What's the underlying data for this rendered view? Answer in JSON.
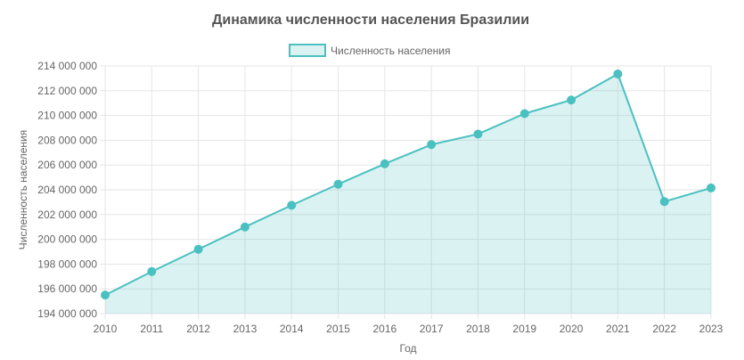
{
  "chart_data": {
    "type": "area",
    "title": "Динамика численности населения Бразилии",
    "xlabel": "Год",
    "ylabel": "Численность населения",
    "legend_position": "top",
    "grid": true,
    "categories": [
      "2010",
      "2011",
      "2012",
      "2013",
      "2014",
      "2015",
      "2016",
      "2017",
      "2018",
      "2019",
      "2020",
      "2021",
      "2022",
      "2023"
    ],
    "series": [
      {
        "name": "Численность населения",
        "values": [
          195500000,
          197400000,
          199200000,
          201000000,
          202750000,
          204450000,
          206100000,
          207650000,
          208500000,
          210150000,
          211250000,
          213350000,
          203050000,
          204150000
        ],
        "color": "#4bc0c0",
        "fill": "rgba(75,192,192,0.2)"
      }
    ],
    "ylim": [
      194000000,
      214000000
    ],
    "yticks": [
      "194 000 000",
      "196 000 000",
      "198 000 000",
      "200 000 000",
      "202 000 000",
      "204 000 000",
      "206 000 000",
      "208 000 000",
      "210 000 000",
      "212 000 000",
      "214 000 000"
    ]
  }
}
